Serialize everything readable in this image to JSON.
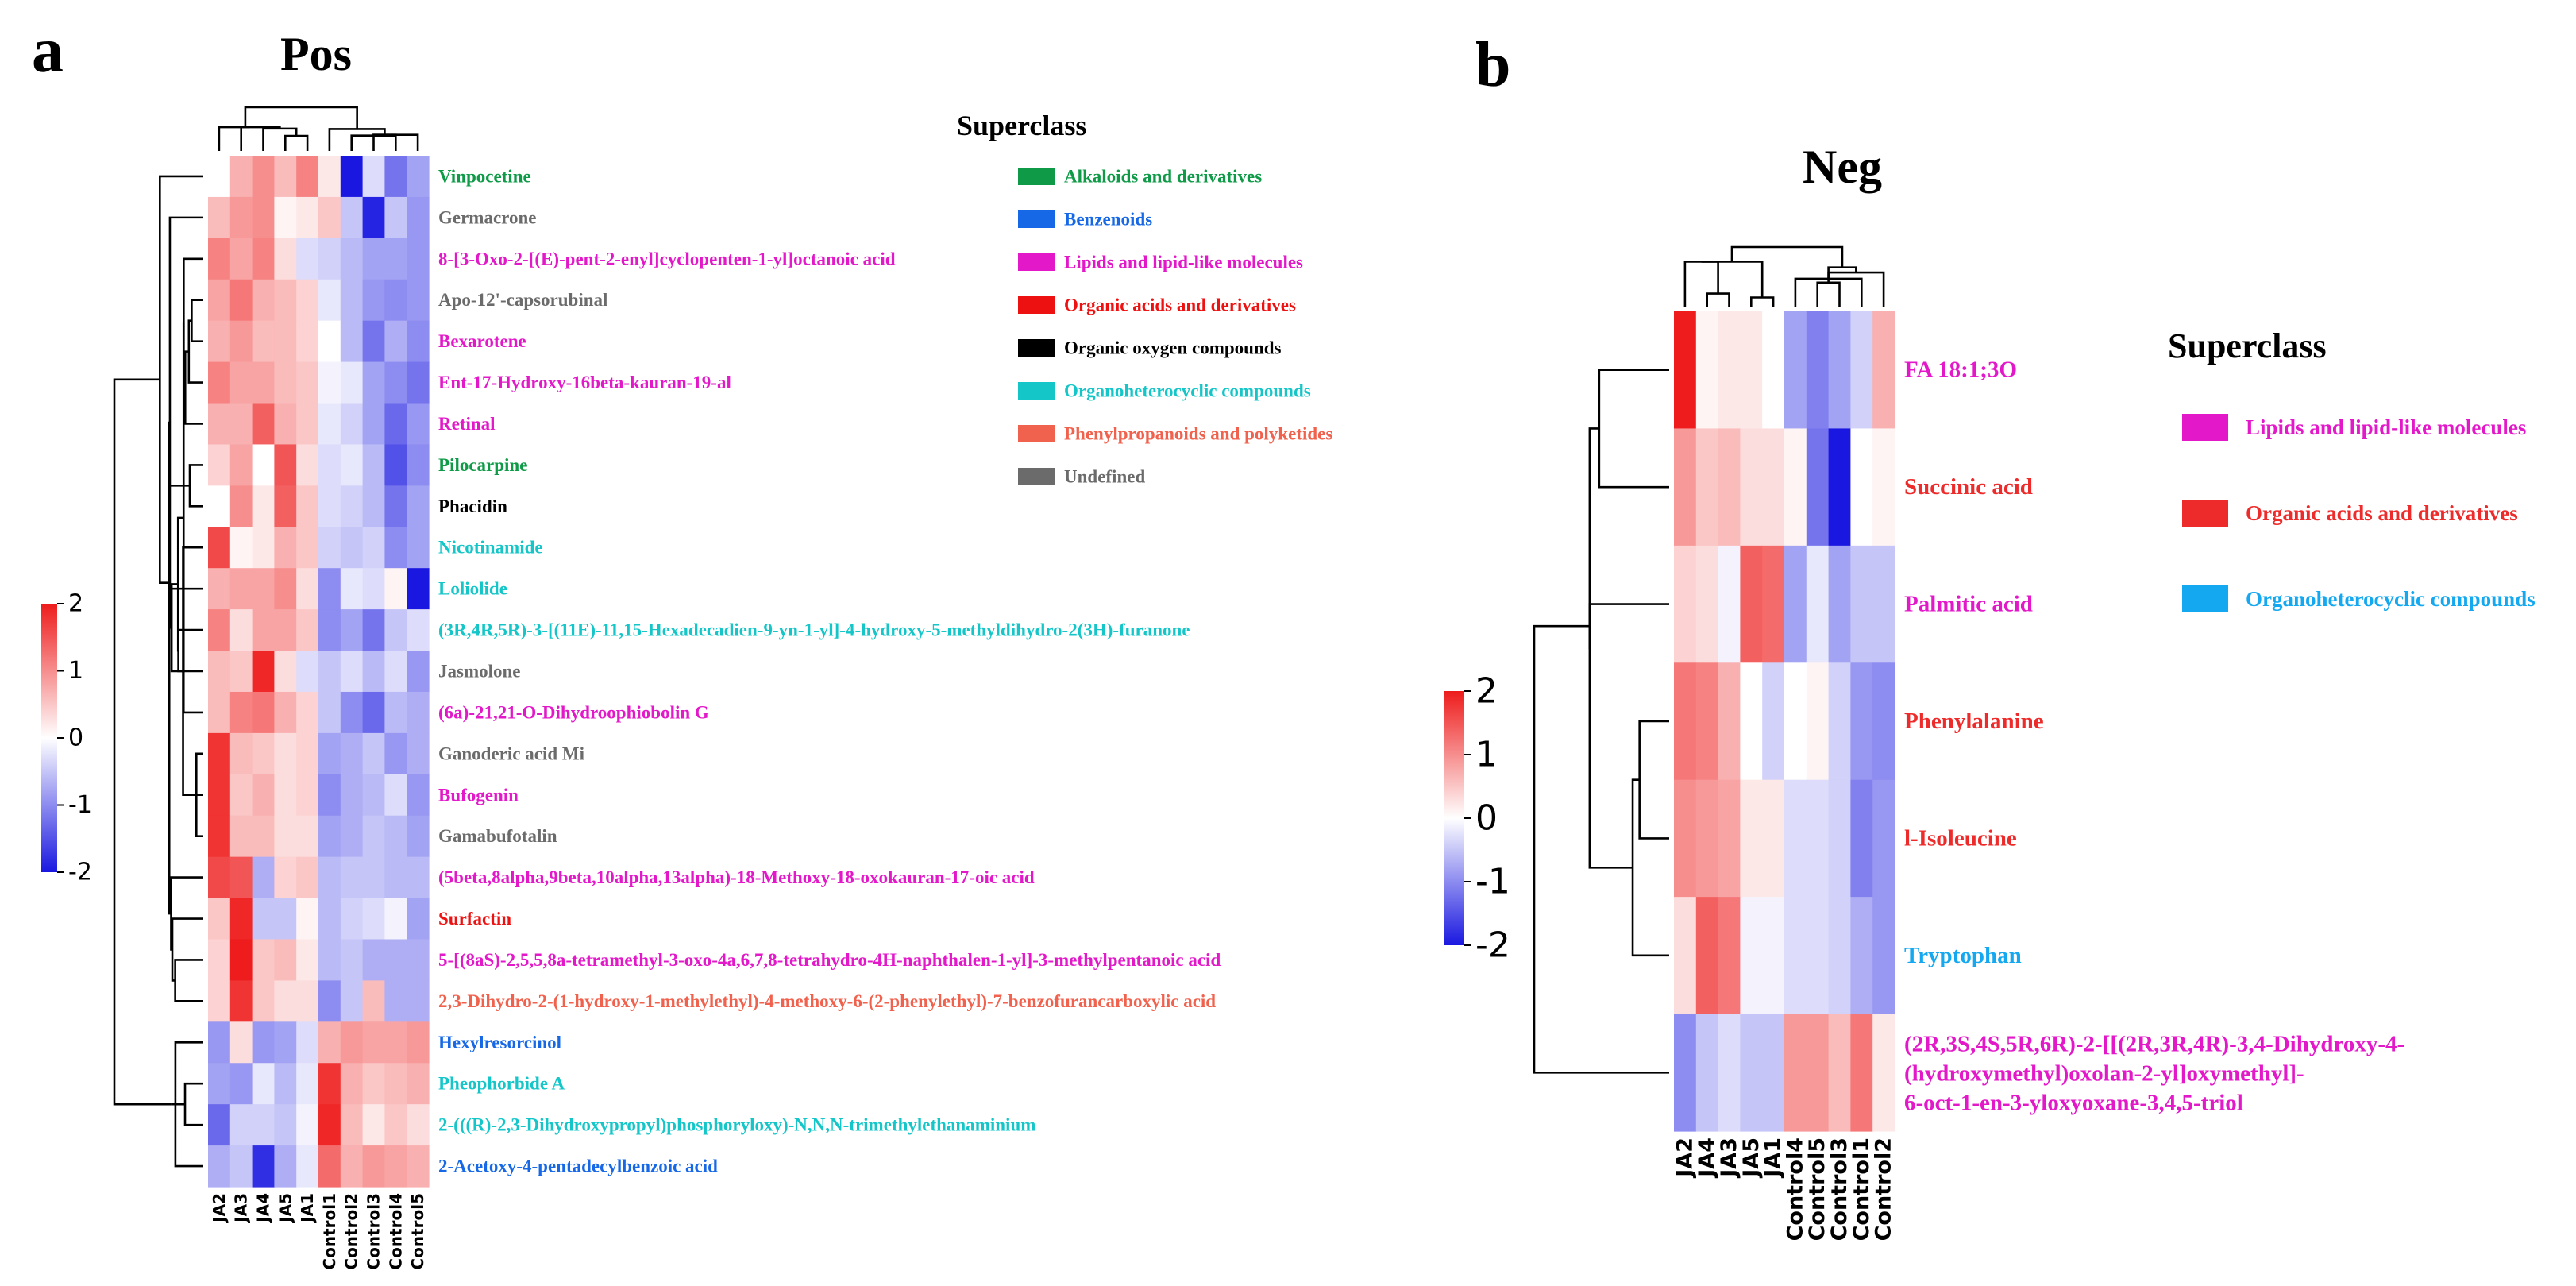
{
  "panel_labels": {
    "a": "a",
    "b": "b"
  },
  "colors": {
    "high": "#ee1c1c",
    "mid": "#ffffff",
    "low": "#1a18e0"
  },
  "chart_data": [
    {
      "type": "heatmap",
      "title": "Pos",
      "columns": [
        "JA2",
        "JA3",
        "JA4",
        "JA5",
        "JA1",
        "Control1",
        "Control2",
        "Control3",
        "Control4",
        "Control5"
      ],
      "rows": [
        {
          "name": "Vinpocetine",
          "superclass": "Alkaloids and derivatives",
          "values": [
            0.0,
            0.7,
            1.0,
            0.6,
            1.1,
            0.2,
            -2.0,
            -0.3,
            -1.2,
            -0.8
          ]
        },
        {
          "name": "Germacrone",
          "superclass": "Undefined",
          "values": [
            0.6,
            0.9,
            1.0,
            0.1,
            0.2,
            0.5,
            -0.5,
            -1.9,
            -0.5,
            -0.9
          ]
        },
        {
          "name": "8-[3-Oxo-2-[(E)-pent-2-enyl]cyclopenten-1-yl]octanoic acid",
          "superclass": "Lipids and lipid-like molecules",
          "values": [
            1.1,
            0.8,
            1.1,
            0.3,
            -0.3,
            -0.4,
            -0.6,
            -0.8,
            -0.8,
            -0.9
          ]
        },
        {
          "name": "Apo-12'-capsorubinal",
          "superclass": "Undefined",
          "values": [
            0.8,
            1.2,
            0.7,
            0.6,
            0.4,
            -0.2,
            -0.6,
            -0.9,
            -1.0,
            -0.9
          ]
        },
        {
          "name": "Bexarotene",
          "superclass": "Lipids and lipid-like molecules",
          "values": [
            0.7,
            0.9,
            0.6,
            0.6,
            0.4,
            0.0,
            -0.6,
            -1.2,
            -0.7,
            -1.0
          ]
        },
        {
          "name": "Ent-17-Hydroxy-16beta-kauran-19-al",
          "superclass": "Lipids and lipid-like molecules",
          "values": [
            1.1,
            0.8,
            0.8,
            0.6,
            0.5,
            -0.1,
            -0.2,
            -0.8,
            -1.0,
            -1.2
          ]
        },
        {
          "name": "Retinal",
          "superclass": "Lipids and lipid-like molecules",
          "values": [
            0.7,
            0.7,
            1.4,
            0.7,
            0.5,
            -0.2,
            -0.4,
            -0.8,
            -1.3,
            -0.9
          ]
        },
        {
          "name": "Pilocarpine",
          "superclass": "Alkaloids and derivatives",
          "values": [
            0.4,
            0.8,
            0.0,
            1.5,
            0.3,
            -0.3,
            -0.2,
            -0.6,
            -1.5,
            -1.0
          ]
        },
        {
          "name": "Phacidin",
          "superclass": "Organic oxygen compounds",
          "values": [
            0.0,
            1.0,
            0.2,
            1.4,
            0.5,
            -0.3,
            -0.4,
            -0.6,
            -1.2,
            -0.8
          ]
        },
        {
          "name": "Nicotinamide",
          "superclass": "Organoheterocyclic compounds",
          "values": [
            1.6,
            0.1,
            0.2,
            0.7,
            0.5,
            -0.4,
            -0.5,
            -0.4,
            -1.0,
            -0.8
          ]
        },
        {
          "name": "Loliolide",
          "superclass": "Organoheterocyclic compounds",
          "values": [
            0.7,
            0.8,
            0.8,
            1.0,
            0.3,
            -1.0,
            -0.2,
            -0.3,
            0.1,
            -2.0
          ]
        },
        {
          "name": "(3R,4R,5R)-3-[(11E)-11,15-Hexadecadien-9-yn-1-yl]-4-hydroxy-5-methyldihydro-2(3H)-furanone",
          "superclass": "Organoheterocyclic compounds",
          "values": [
            1.1,
            0.3,
            0.8,
            0.8,
            0.5,
            -1.0,
            -0.8,
            -1.2,
            -0.5,
            -0.3
          ]
        },
        {
          "name": "Jasmolone",
          "superclass": "Undefined",
          "values": [
            0.6,
            0.5,
            1.9,
            0.3,
            -0.3,
            -0.5,
            -0.3,
            -0.6,
            -0.3,
            -0.9
          ]
        },
        {
          "name": "(6a)-21,21-O-Dihydroophiobolin G",
          "superclass": "Lipids and lipid-like molecules",
          "values": [
            0.6,
            1.1,
            1.2,
            0.7,
            0.4,
            -0.5,
            -1.0,
            -1.3,
            -0.6,
            -0.7
          ]
        },
        {
          "name": "Ganoderic acid Mi",
          "superclass": "Undefined",
          "values": [
            1.8,
            0.6,
            0.5,
            0.3,
            0.4,
            -0.8,
            -0.7,
            -0.5,
            -0.9,
            -0.7
          ]
        },
        {
          "name": "Bufogenin",
          "superclass": "Lipids and lipid-like molecules",
          "values": [
            1.8,
            0.5,
            0.7,
            0.3,
            0.4,
            -1.0,
            -0.7,
            -0.6,
            -0.3,
            -0.9
          ]
        },
        {
          "name": "Gamabufotalin",
          "superclass": "Undefined",
          "values": [
            1.8,
            0.6,
            0.6,
            0.3,
            0.3,
            -0.8,
            -0.7,
            -0.5,
            -0.6,
            -0.8
          ]
        },
        {
          "name": "(5beta,8alpha,9beta,10alpha,13alpha)-18-Methoxy-18-oxokauran-17-oic acid",
          "superclass": "Lipids and lipid-like molecules",
          "values": [
            1.6,
            1.5,
            -0.7,
            0.4,
            0.5,
            -0.6,
            -0.5,
            -0.5,
            -0.6,
            -0.6
          ]
        },
        {
          "name": "Surfactin",
          "superclass": "Organic acids and derivatives",
          "values": [
            0.5,
            1.9,
            -0.5,
            -0.5,
            0.1,
            -0.6,
            -0.4,
            -0.3,
            -0.1,
            -0.8
          ]
        },
        {
          "name": "5-[(8aS)-2,5,5,8a-tetramethyl-3-oxo-4a,6,7,8-tetrahydro-4H-naphthalen-1-yl]-3-methylpentanoic acid",
          "superclass": "Lipids and lipid-like molecules",
          "values": [
            0.4,
            2.0,
            0.5,
            0.6,
            0.2,
            -0.6,
            -0.5,
            -0.7,
            -0.7,
            -0.7
          ]
        },
        {
          "name": "2,3-Dihydro-2-(1-hydroxy-1-methylethyl)-4-methoxy-6-(2-phenylethyl)-7-benzofurancarboxylic acid",
          "superclass": "Phenylpropanoids and polyketides",
          "values": [
            0.4,
            1.8,
            0.5,
            0.3,
            0.3,
            -1.0,
            -0.5,
            0.6,
            -0.7,
            -0.7
          ]
        },
        {
          "name": "Hexylresorcinol",
          "superclass": "Benzenoids",
          "values": [
            -0.9,
            0.3,
            -0.9,
            -0.8,
            -0.3,
            0.7,
            0.9,
            0.8,
            0.8,
            0.9
          ]
        },
        {
          "name": "Pheophorbide A",
          "superclass": "Organoheterocyclic compounds",
          "values": [
            -0.8,
            -0.9,
            -0.2,
            -0.6,
            -0.2,
            1.8,
            0.7,
            0.5,
            0.6,
            0.7
          ]
        },
        {
          "name": "2-(((R)-2,3-Dihydroxypropyl)phosphoryloxy)-N,N,N-trimethylethanaminium",
          "superclass": "Organoheterocyclic compounds",
          "values": [
            -1.3,
            -0.4,
            -0.4,
            -0.5,
            -0.1,
            1.9,
            0.6,
            0.2,
            0.5,
            0.3
          ]
        },
        {
          "name": "2-Acetoxy-4-pentadecylbenzoic acid",
          "superclass": "Benzenoids",
          "values": [
            -0.7,
            -0.5,
            -1.8,
            -0.7,
            -0.2,
            1.3,
            0.7,
            0.9,
            0.8,
            0.7
          ]
        }
      ],
      "legend_title": "Superclass",
      "legend": [
        {
          "label": "Alkaloids and derivatives",
          "color": "#0e9a47"
        },
        {
          "label": "Benzenoids",
          "color": "#1668e6"
        },
        {
          "label": "Lipids and lipid-like molecules",
          "color": "#e218c9"
        },
        {
          "label": "Organic acids and derivatives",
          "color": "#ee1111"
        },
        {
          "label": "Organic oxygen compounds",
          "color": "#000000"
        },
        {
          "label": "Organoheterocyclic compounds",
          "color": "#14c6c8"
        },
        {
          "label": "Phenylpropanoids and polyketides",
          "color": "#f0624d"
        },
        {
          "label": "Undefined",
          "color": "#6b6b6b"
        }
      ],
      "colorbar": {
        "ticks": [
          "2",
          "1",
          "0",
          "-1",
          "-2"
        ],
        "range": [
          -2,
          2
        ]
      }
    },
    {
      "type": "heatmap",
      "title": "Neg",
      "columns": [
        "JA2",
        "JA4",
        "JA3",
        "JA5",
        "JA1",
        "Control4",
        "Control5",
        "Control3",
        "Control1",
        "Control2"
      ],
      "rows": [
        {
          "name": "FA 18:1;3O",
          "superclass": "Lipids and lipid-like molecules",
          "values": [
            2.0,
            0.1,
            0.2,
            0.2,
            0.0,
            -0.8,
            -1.1,
            -0.8,
            -0.4,
            0.7
          ]
        },
        {
          "name": "Succinic acid",
          "superclass": "Organic acids and derivatives",
          "values": [
            0.9,
            0.5,
            0.6,
            0.3,
            0.3,
            0.1,
            -1.2,
            -2.0,
            0.0,
            0.1
          ]
        },
        {
          "name": "Palmitic acid",
          "superclass": "Lipids and lipid-like molecules",
          "values": [
            0.4,
            0.3,
            -0.1,
            1.4,
            1.3,
            -0.8,
            -0.2,
            -0.8,
            -0.5,
            -0.5
          ]
        },
        {
          "name": "Phenylalanine",
          "superclass": "Organic acids and derivatives",
          "values": [
            1.2,
            1.1,
            0.7,
            0.0,
            -0.4,
            0.0,
            0.1,
            -0.4,
            -0.9,
            -1.0
          ]
        },
        {
          "name": "l-Isoleucine",
          "superclass": "Organic acids and derivatives",
          "values": [
            1.0,
            0.9,
            0.8,
            0.2,
            0.2,
            -0.3,
            -0.3,
            -0.4,
            -1.1,
            -0.9
          ]
        },
        {
          "name": "Tryptophan",
          "superclass": "Organoheterocyclic compounds",
          "values": [
            0.3,
            1.4,
            1.2,
            -0.1,
            -0.1,
            -0.3,
            -0.3,
            -0.4,
            -0.7,
            -0.9
          ]
        },
        {
          "name": "(2R,3S,4S,5R,6R)-2-[[(2R,3R,4R)-3,4-Dihydroxy-4-(hydroxymethyl)oxolan-2-yl]oxymethyl]-6-oct-1-en-3-yloxyoxane-3,4,5-triol",
          "superclass": "Lipids and lipid-like molecules",
          "values": [
            -1.0,
            -0.5,
            -0.3,
            -0.5,
            -0.5,
            0.9,
            0.9,
            0.6,
            1.2,
            0.2
          ]
        }
      ],
      "legend_title": "Superclass",
      "legend": [
        {
          "label": "Lipids and lipid-like molecules",
          "color": "#e218c9"
        },
        {
          "label": "Organic acids and derivatives",
          "color": "#ee2b2b"
        },
        {
          "label": "Organoheterocyclic compounds",
          "color": "#14a8f0"
        }
      ],
      "colorbar": {
        "ticks": [
          "2",
          "1",
          "0",
          "-1",
          "-2"
        ],
        "range": [
          -2,
          2
        ]
      }
    }
  ]
}
